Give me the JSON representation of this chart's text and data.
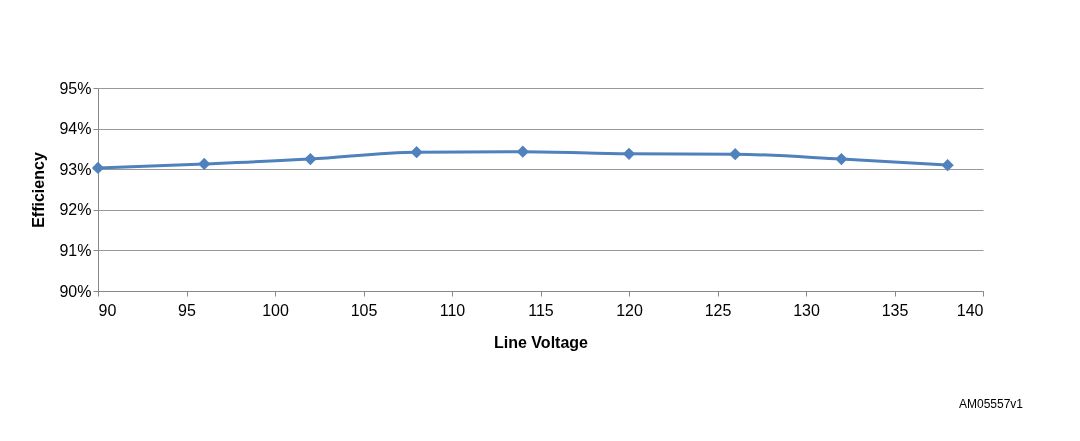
{
  "chart_data": {
    "type": "line",
    "xlabel": "Line Voltage",
    "ylabel": "Efficiency",
    "x": [
      90,
      96,
      102,
      108,
      114,
      120,
      126,
      132,
      138
    ],
    "series": [
      {
        "color": "#4f81bd",
        "values": [
          93.03,
          93.13,
          93.25,
          93.42,
          93.43,
          93.38,
          93.37,
          93.25,
          93.1
        ]
      }
    ],
    "xlim": [
      90,
      140
    ],
    "xticks": [
      90,
      95,
      100,
      105,
      110,
      115,
      120,
      125,
      130,
      135,
      140
    ],
    "ylim": [
      90,
      95
    ],
    "yticks": [
      {
        "value": 90,
        "label": "90%"
      },
      {
        "value": 91,
        "label": "91%"
      },
      {
        "value": 92,
        "label": "92%"
      },
      {
        "value": 93,
        "label": "93%"
      },
      {
        "value": 94,
        "label": "94%"
      },
      {
        "value": 95,
        "label": "95%"
      }
    ],
    "grid": "y",
    "marker": "diamond",
    "line_style": "solid",
    "annotations": [
      "AM05557v1"
    ]
  }
}
